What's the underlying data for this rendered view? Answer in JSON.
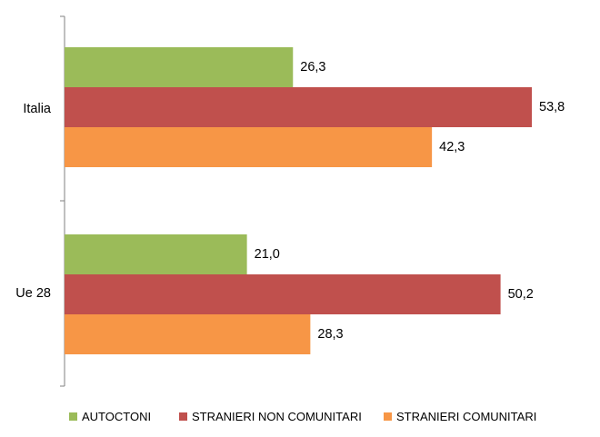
{
  "chart_data": {
    "type": "bar",
    "orientation": "horizontal",
    "categories": [
      "Italia",
      "Ue 28"
    ],
    "series": [
      {
        "name": "AUTOCTONI",
        "values": [
          26.3,
          21.0
        ],
        "labels": [
          "26,3",
          "21,0"
        ],
        "color": "#9BBB59"
      },
      {
        "name": "STRANIERI NON COMUNITARI",
        "values": [
          53.8,
          50.2
        ],
        "labels": [
          "53,8",
          "50,2"
        ],
        "color": "#C0504D"
      },
      {
        "name": "STRANIERI COMUNITARI",
        "values": [
          42.3,
          28.3
        ],
        "labels": [
          "42,3",
          "28,3"
        ],
        "color": "#F79646"
      }
    ],
    "xlim": [
      0,
      60
    ],
    "grid": false,
    "legend_position": "bottom"
  }
}
